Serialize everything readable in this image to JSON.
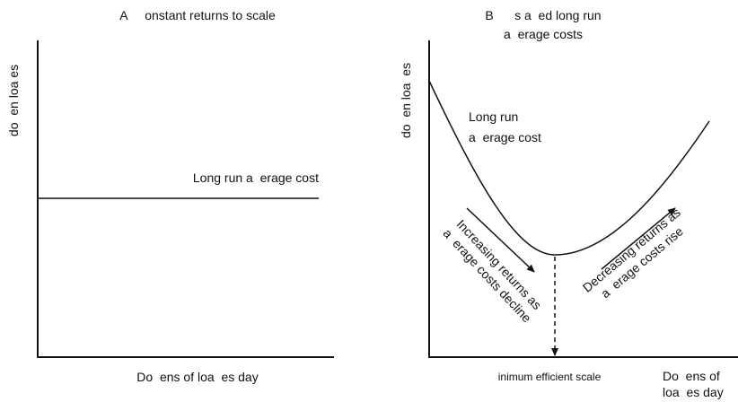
{
  "panels": [
    {
      "title": [
        "A     onstant returns to scale"
      ],
      "y_label": "do  en loa es",
      "x_label": [
        "Do  ens of loa  es day"
      ],
      "curve_label": [
        "Long run a  erage cost"
      ]
    },
    {
      "title": [
        "B      s a  ed long run",
        "a  erage costs"
      ],
      "y_label": "do  en loa  es",
      "x_label": [
        "Do  ens of",
        "loa  es day"
      ],
      "curve_label": [
        "Long run",
        "a  erage cost"
      ],
      "increasing_label": [
        "Increasing returns as",
        "a  erage costs decline"
      ],
      "decreasing_label": [
        "Decreasing returns as",
        "a  erage costs rise"
      ],
      "mes_label": "inimum efficient scale"
    }
  ]
}
